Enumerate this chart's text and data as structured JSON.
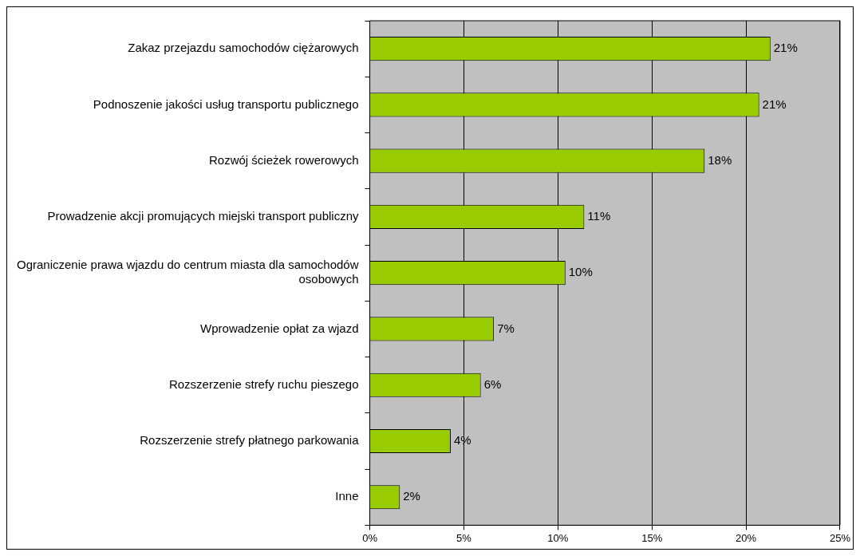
{
  "chart_data": {
    "type": "bar",
    "orientation": "horizontal",
    "categories": [
      "Zakaz przejazdu samochodów ciężarowych",
      "Podnoszenie jakości usług transportu publicznego",
      "Rozwój ścieżek rowerowych",
      "Prowadzenie akcji promujących miejski transport publiczny",
      "Ograniczenie prawa wjazdu do centrum miasta dla samochodów osobowych",
      "Wprowadzenie opłat za wjazd",
      "Rozszerzenie strefy ruchu pieszego",
      "Rozszerzenie strefy płatnego parkowania",
      "Inne"
    ],
    "values": [
      21.3,
      20.7,
      17.8,
      11.4,
      10.4,
      6.6,
      5.9,
      4.3,
      1.6
    ],
    "value_labels": [
      "21%",
      "21%",
      "18%",
      "11%",
      "10%",
      "7%",
      "6%",
      "4%",
      "2%"
    ],
    "color": "#99cc00",
    "xlim": [
      0,
      25
    ],
    "xticks": [
      {
        "value": 0,
        "label": "0%"
      },
      {
        "value": 5,
        "label": "5%"
      },
      {
        "value": 10,
        "label": "10%"
      },
      {
        "value": 15,
        "label": "15%"
      },
      {
        "value": 20,
        "label": "20%"
      },
      {
        "value": 25,
        "label": "25%"
      }
    ],
    "grid": "x",
    "legend": false
  }
}
